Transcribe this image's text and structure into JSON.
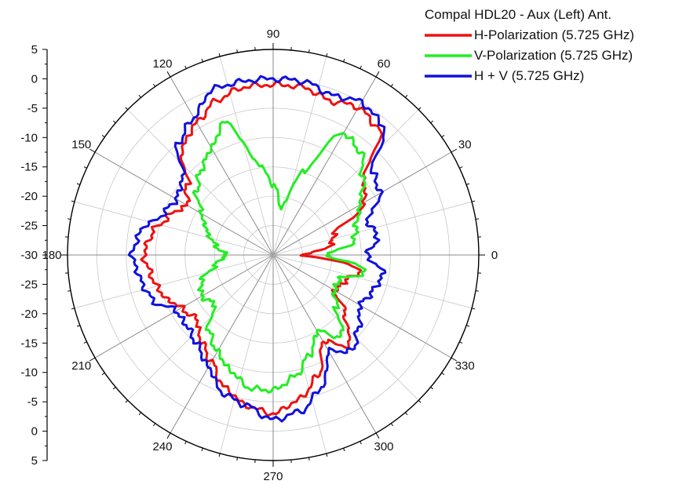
{
  "chart_data": {
    "type": "polar-line",
    "title": "",
    "legend_title": "Compal HDL20 - Aux (Left) Ant.",
    "legend_placement": "top-right",
    "angle_unit": "deg",
    "angle_ticks": [
      0,
      30,
      60,
      90,
      120,
      150,
      180,
      210,
      240,
      270,
      300,
      330
    ],
    "radial_range": [
      -30,
      5
    ],
    "radial_tick_labels_upper": [
      "5",
      "0",
      "-5",
      "-10",
      "-15",
      "-20",
      "-25",
      "-30"
    ],
    "radial_tick_labels_lower": [
      "-25",
      "-20",
      "-15",
      "-10",
      "-5",
      "0",
      "5"
    ],
    "grid": true,
    "angles": [
      0,
      10,
      20,
      30,
      40,
      50,
      60,
      70,
      80,
      90,
      100,
      110,
      120,
      130,
      140,
      150,
      160,
      170,
      180,
      190,
      200,
      210,
      220,
      230,
      240,
      250,
      260,
      270,
      280,
      290,
      300,
      310,
      320,
      330,
      340,
      350
    ],
    "series": [
      {
        "name": "H-Polarization (5.725 GHz)",
        "color": "#ee1111",
        "values": [
          -25,
          -20,
          -19,
          -12,
          -10,
          -2,
          -1,
          -2,
          -1,
          -1,
          -1,
          -2,
          -4,
          -6,
          -11,
          -13,
          -11,
          -9,
          -8,
          -9,
          -10,
          -12,
          -13,
          -11,
          -9,
          -6,
          -4,
          -3,
          -5,
          -8,
          -13,
          -10,
          -14,
          -18,
          -17,
          -15
        ]
      },
      {
        "name": "V-Polarization (5.725 GHz)",
        "color": "#22ee22",
        "values": [
          -21,
          -16,
          -15,
          -13,
          -10,
          -7,
          -6,
          -15,
          -22,
          -18,
          -14,
          -6,
          -9,
          -11,
          -13,
          -16,
          -18,
          -20,
          -22,
          -20,
          -17,
          -16,
          -17,
          -13,
          -11,
          -9,
          -7,
          -7,
          -9,
          -12,
          -15,
          -12,
          -16,
          -18,
          -18,
          -14
        ]
      },
      {
        "name": "H + V (5.725 GHz)",
        "color": "#1111dd",
        "values": [
          -14,
          -12,
          -13,
          -9,
          -8,
          -1,
          0,
          -1,
          0,
          0,
          0,
          0,
          -3,
          -5,
          -10,
          -11,
          -10,
          -7,
          -6,
          -7,
          -8,
          -11,
          -11,
          -10,
          -8,
          -5,
          -4,
          -2,
          -3,
          -6,
          -11,
          -9,
          -11,
          -13,
          -12,
          -11
        ]
      }
    ]
  }
}
